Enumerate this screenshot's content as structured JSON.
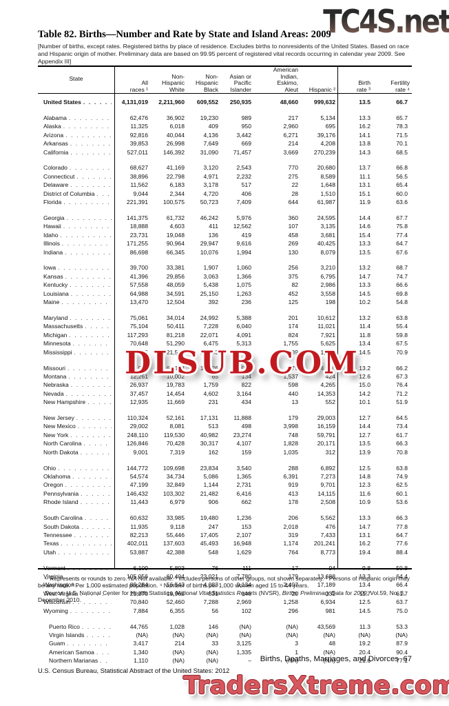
{
  "watermarks": {
    "top": "TC4S.net",
    "middle": "DLSUB.COM",
    "bottom": "TradersXtreme.com"
  },
  "title": "Table 82. Births—Number and Rate by State and Island Areas: 2009",
  "bracket_note": "[Number of births, except rates. Registered births by place of residence. Excludes births to nonresidents of the United States. Based on race and Hispanic origin of mother. Preliminary data are based on 99.95 percent of registered vital records occurring in calendar year 2009. See Appendix III]",
  "table": {
    "columns": [
      {
        "lines": [
          "State"
        ]
      },
      {
        "lines": [
          "All",
          "races ¹"
        ]
      },
      {
        "lines": [
          "Non-",
          "Hispanic",
          "White"
        ]
      },
      {
        "lines": [
          "Non-",
          "Hispanic",
          "Black"
        ]
      },
      {
        "lines": [
          "Asian or",
          "Pacific",
          "Islander"
        ]
      },
      {
        "lines": [
          "American",
          "Indian,",
          "Eskimo,",
          "Aleut"
        ]
      },
      {
        "lines": [
          "Hispanic ²"
        ]
      },
      {
        "lines": [
          "Birth",
          "rate ³"
        ]
      },
      {
        "lines": [
          "Fertility",
          "rate ⁴"
        ]
      }
    ],
    "us_row": {
      "label": "United States",
      "values": [
        "4,131,019",
        "2,211,960",
        "609,552",
        "250,935",
        "48,660",
        "999,632",
        "13.5",
        "66.7"
      ]
    },
    "groups": [
      {
        "rows": [
          {
            "label": "Alabama",
            "values": [
              "62,476",
              "36,902",
              "19,230",
              "989",
              "217",
              "5,134",
              "13.3",
              "65.7"
            ]
          },
          {
            "label": "Alaska",
            "values": [
              "11,325",
              "6,018",
              "409",
              "950",
              "2,960",
              "695",
              "16.2",
              "78.3"
            ]
          },
          {
            "label": "Arizona",
            "values": [
              "92,816",
              "40,044",
              "4,136",
              "3,442",
              "6,271",
              "39,176",
              "14.1",
              "71.5"
            ]
          },
          {
            "label": "Arkansas",
            "values": [
              "39,853",
              "26,998",
              "7,649",
              "669",
              "214",
              "4,208",
              "13.8",
              "70.1"
            ]
          },
          {
            "label": "California",
            "values": [
              "527,011",
              "146,392",
              "31,090",
              "71,457",
              "3,669",
              "270,239",
              "14.3",
              "68.5"
            ]
          }
        ]
      },
      {
        "rows": [
          {
            "label": "Colorado",
            "values": [
              "68,627",
              "41,169",
              "3,120",
              "2,543",
              "770",
              "20,680",
              "13.7",
              "66.8"
            ]
          },
          {
            "label": "Connecticut",
            "values": [
              "38,896",
              "22,798",
              "4,971",
              "2,232",
              "275",
              "8,589",
              "11.1",
              "56.5"
            ]
          },
          {
            "label": "Delaware",
            "values": [
              "11,562",
              "6,183",
              "3,178",
              "517",
              "22",
              "1,648",
              "13.1",
              "65.4"
            ]
          },
          {
            "label": "District of Columbia",
            "values": [
              "9,044",
              "2,344",
              "4,720",
              "406",
              "28",
              "1,510",
              "15.1",
              "60.0"
            ]
          },
          {
            "label": "Florida",
            "values": [
              "221,391",
              "100,575",
              "50,723",
              "7,409",
              "644",
              "61,987",
              "11.9",
              "63.6"
            ]
          }
        ]
      },
      {
        "rows": [
          {
            "label": "Georgia",
            "values": [
              "141,375",
              "61,732",
              "46,242",
              "5,976",
              "360",
              "24,595",
              "14.4",
              "67.7"
            ]
          },
          {
            "label": "Hawaii",
            "values": [
              "18,888",
              "4,603",
              "411",
              "12,562",
              "107",
              "3,135",
              "14.6",
              "75.8"
            ]
          },
          {
            "label": "Idaho",
            "values": [
              "23,731",
              "19,048",
              "136",
              "419",
              "458",
              "3,681",
              "15.4",
              "77.4"
            ]
          },
          {
            "label": "Illinois",
            "values": [
              "171,255",
              "90,964",
              "29,947",
              "9,616",
              "269",
              "40,425",
              "13.3",
              "64.7"
            ]
          },
          {
            "label": "Indiana",
            "values": [
              "86,698",
              "66,345",
              "10,076",
              "1,994",
              "130",
              "8,079",
              "13.5",
              "67.6"
            ]
          }
        ]
      },
      {
        "rows": [
          {
            "label": "Iowa",
            "values": [
              "39,700",
              "33,381",
              "1,907",
              "1,060",
              "256",
              "3,210",
              "13.2",
              "68.7"
            ]
          },
          {
            "label": "Kansas",
            "values": [
              "41,396",
              "29,856",
              "3,063",
              "1,366",
              "375",
              "6,795",
              "14.7",
              "74.7"
            ]
          },
          {
            "label": "Kentucky",
            "values": [
              "57,558",
              "48,059",
              "5,438",
              "1,075",
              "82",
              "2,986",
              "13.3",
              "66.6"
            ]
          },
          {
            "label": "Louisiana",
            "values": [
              "64,988",
              "34,591",
              "25,150",
              "1,263",
              "452",
              "3,558",
              "14.5",
              "69.8"
            ]
          },
          {
            "label": "Maine",
            "values": [
              "13,470",
              "12,504",
              "392",
              "236",
              "125",
              "198",
              "10.2",
              "54.8"
            ]
          }
        ]
      },
      {
        "rows": [
          {
            "label": "Maryland",
            "values": [
              "75,061",
              "34,014",
              "24,992",
              "5,388",
              "201",
              "10,612",
              "13.2",
              "63.8"
            ]
          },
          {
            "label": "Massachusetts",
            "values": [
              "75,104",
              "50,411",
              "7,228",
              "6,040",
              "174",
              "11,021",
              "11.4",
              "55.4"
            ]
          },
          {
            "label": "Michigan",
            "values": [
              "117,293",
              "81,218",
              "22,071",
              "4,091",
              "824",
              "7,921",
              "11.8",
              "59.8"
            ]
          },
          {
            "label": "Minnesota",
            "values": [
              "70,648",
              "51,290",
              "6,475",
              "5,313",
              "1,755",
              "5,625",
              "13.4",
              "67.5"
            ]
          },
          {
            "label": "Mississippi",
            "values": [
              "42,905",
              "21,510",
              "19,043",
              "479",
              "339",
              "1,514",
              "14.5",
              "70.9"
            ]
          }
        ]
      },
      {
        "rows": [
          {
            "label": "Missouri",
            "values": [
              "78,920",
              "60,184",
              "12,026",
              "2,028",
              "375",
              "4,290",
              "13.2",
              "66.2"
            ]
          },
          {
            "label": "Montana",
            "values": [
              "12,261",
              "10,002",
              "65",
              "134",
              "1,537",
              "424",
              "12.6",
              "67.3"
            ]
          },
          {
            "label": "Nebraska",
            "values": [
              "26,937",
              "19,783",
              "1,759",
              "822",
              "598",
              "4,265",
              "15.0",
              "76.4"
            ]
          },
          {
            "label": "Nevada",
            "values": [
              "37,457",
              "14,454",
              "4,602",
              "3,164",
              "440",
              "14,353",
              "14.2",
              "71.2"
            ]
          },
          {
            "label": "New Hampshire",
            "values": [
              "12,935",
              "11,669",
              "231",
              "434",
              "13",
              "552",
              "10.1",
              "51.9"
            ]
          }
        ]
      },
      {
        "rows": [
          {
            "label": "New Jersey",
            "values": [
              "110,324",
              "52,161",
              "17,131",
              "11,888",
              "179",
              "29,003",
              "12.7",
              "64.5"
            ]
          },
          {
            "label": "New Mexico",
            "values": [
              "29,002",
              "8,081",
              "513",
              "498",
              "3,998",
              "16,159",
              "14.4",
              "73.4"
            ]
          },
          {
            "label": "New York",
            "values": [
              "248,110",
              "119,530",
              "40,982",
              "23,274",
              "748",
              "59,791",
              "12.7",
              "61.7"
            ]
          },
          {
            "label": "North Carolina",
            "values": [
              "126,846",
              "70,428",
              "30,317",
              "4,107",
              "1,828",
              "20,171",
              "13.5",
              "66.3"
            ]
          },
          {
            "label": "North Dakota",
            "values": [
              "9,001",
              "7,319",
              "162",
              "159",
              "1,035",
              "312",
              "13.9",
              "70.8"
            ]
          }
        ]
      },
      {
        "rows": [
          {
            "label": "Ohio",
            "values": [
              "144,772",
              "109,698",
              "23,834",
              "3,540",
              "288",
              "6,892",
              "12.5",
              "63.8"
            ]
          },
          {
            "label": "Oklahoma",
            "values": [
              "54,574",
              "34,734",
              "5,086",
              "1,365",
              "6,391",
              "7,273",
              "14.8",
              "74.9"
            ]
          },
          {
            "label": "Oregon",
            "values": [
              "47,199",
              "32,849",
              "1,144",
              "2,731",
              "919",
              "9,701",
              "12.3",
              "62.5"
            ]
          },
          {
            "label": "Pennsylvania",
            "values": [
              "146,432",
              "103,302",
              "21,482",
              "6,416",
              "413",
              "14,115",
              "11.6",
              "60.1"
            ]
          },
          {
            "label": "Rhode Island",
            "values": [
              "11,443",
              "6,979",
              "906",
              "662",
              "178",
              "2,508",
              "10.9",
              "53.6"
            ]
          }
        ]
      },
      {
        "rows": [
          {
            "label": "South Carolina",
            "values": [
              "60,632",
              "33,985",
              "19,480",
              "1,236",
              "206",
              "5,562",
              "13.3",
              "66.3"
            ]
          },
          {
            "label": "South Dakota",
            "values": [
              "11,935",
              "9,118",
              "247",
              "153",
              "2,018",
              "476",
              "14.7",
              "77.8"
            ]
          },
          {
            "label": "Tennessee",
            "values": [
              "82,213",
              "55,446",
              "17,405",
              "2,107",
              "319",
              "7,433",
              "13.1",
              "64.7"
            ]
          },
          {
            "label": "Texas",
            "values": [
              "402,011",
              "137,603",
              "45,493",
              "16,948",
              "1,174",
              "201,241",
              "16.2",
              "77.6"
            ]
          },
          {
            "label": "Utah",
            "values": [
              "53,887",
              "42,388",
              "548",
              "1,629",
              "764",
              "8,773",
              "19.4",
              "88.4"
            ]
          }
        ]
      },
      {
        "rows": [
          {
            "label": "Vermont",
            "values": [
              "6,109",
              "5,803",
              "76",
              "111",
              "17",
              "94",
              "9.8",
              "50.8"
            ]
          },
          {
            "label": "Virginia",
            "values": [
              "105,056",
              "60,404",
              "23,021",
              "7,780",
              "179",
              "13,688",
              "13.3",
              "64.4"
            ]
          },
          {
            "label": "Washington",
            "values": [
              "89,284",
              "56,543",
              "4,083",
              "9,134",
              "2,407",
              "17,189",
              "13.4",
              "66.4"
            ]
          },
          {
            "label": "West Virginia",
            "values": [
              "21,270",
              "19,962",
              "831",
              "146",
              "20",
              "231",
              "11.7",
              "61.7"
            ]
          },
          {
            "label": "Wisconsin",
            "values": [
              "70,840",
              "52,460",
              "7,288",
              "2,969",
              "1,258",
              "6,934",
              "12.5",
              "63.7"
            ]
          },
          {
            "label": "Wyoming",
            "values": [
              "7,884",
              "6,355",
              "56",
              "102",
              "296",
              "981",
              "14.5",
              "75.0"
            ]
          }
        ]
      },
      {
        "island": true,
        "rows": [
          {
            "label": "Puerto Rico",
            "values": [
              "44,765",
              "1,028",
              "146",
              "(NA)",
              "(NA)",
              "43,569",
              "11.3",
              "53.3"
            ]
          },
          {
            "label": "Virgin Islands",
            "values": [
              "(NA)",
              "(NA)",
              "(NA)",
              "(NA)",
              "(NA)",
              "(NA)",
              "(NA)",
              "(NA)"
            ]
          },
          {
            "label": "Guam",
            "values": [
              "3,417",
              "214",
              "33",
              "3,125",
              "3",
              "48",
              "19.2",
              "87.9"
            ]
          },
          {
            "label": "American Samoa",
            "values": [
              "1,340",
              "(NA)",
              "(NA)",
              "1,335",
              "1",
              "(NA)",
              "20.4",
              "90.4"
            ]
          },
          {
            "label": "Northern Marianas",
            "values": [
              "1,110",
              "(NA)",
              "(NA)",
              "–",
              "(NA)",
              "(NA)",
              "21.6",
              "77.1"
            ]
          }
        ]
      }
    ]
  },
  "footnotes": {
    "note": "– Represents or rounds to zero. NA Not available. ¹ Includes persons of other groups, not shown separately. ² Persons of Hispanic origin may be any race. ³ Per 1,000 estimated population. ⁴ Number of births per 1,000 women aged 15 to 44 years.",
    "source_parts": {
      "s1": "Source: U.S. National Center for Health Statistics, ",
      "s2_italic": "National Vital Statistics Reports",
      "s3": " (NVSR), ",
      "s4_italic": "Births: Preliminary Data for 2009,",
      "s5": " Vol.59, No. 3, December 2010."
    }
  },
  "footer": {
    "right": "Births, Deaths, Marriages, and Divorces  67",
    "left": "U.S. Census Bureau, Statistical Abstract of the United States: 2012"
  }
}
